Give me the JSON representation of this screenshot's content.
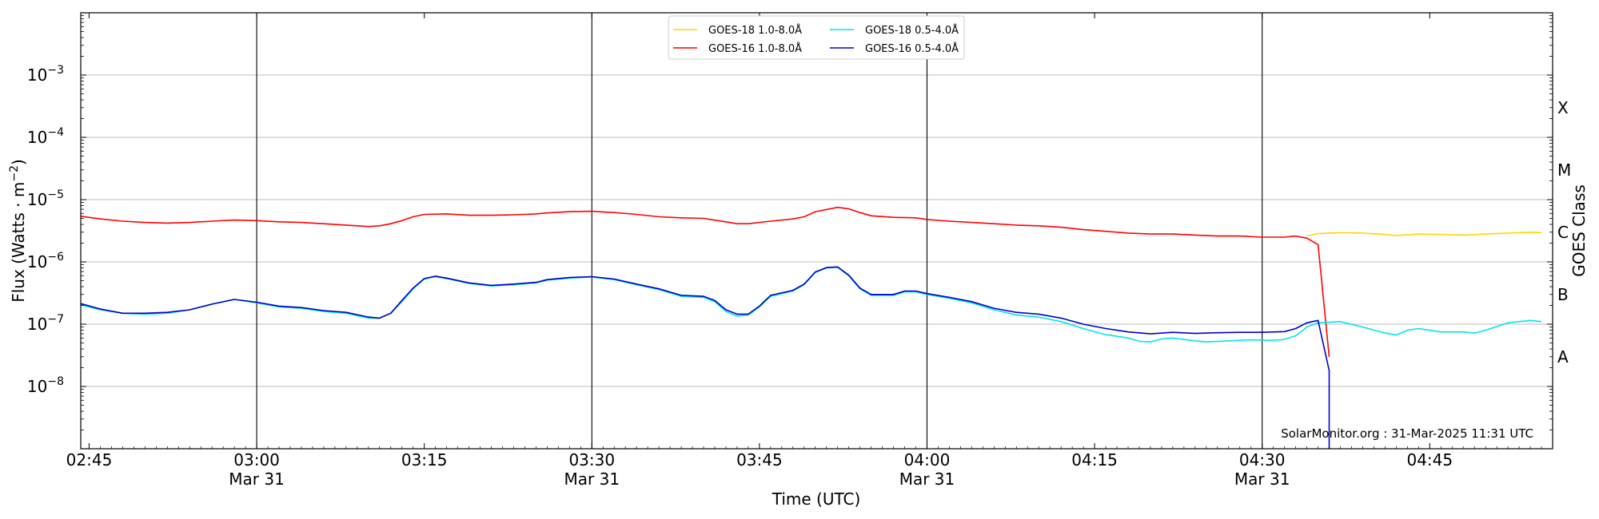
{
  "chart_data": {
    "type": "line",
    "xlabel": "Time (UTC)",
    "ylabel": "Flux (Watts · m",
    "ylabel_superscript": "−2",
    "ylabel_close": ")",
    "right_axis_label": "GOES Class",
    "yscale": "log",
    "ylim": [
      1e-09,
      0.01
    ],
    "xlim": [
      "02:44:15",
      "04:56:00"
    ],
    "grid": "horizontal at decades; vertical lines at half hours",
    "legend_position": "top-center",
    "watermark": "SolarMonitor.org : 31-Mar-2025 11:31 UTC",
    "x_ticks": [
      {
        "t": "02:45",
        "label": "02:45",
        "sub": ""
      },
      {
        "t": "03:00",
        "label": "03:00",
        "sub": "Mar 31"
      },
      {
        "t": "03:15",
        "label": "03:15",
        "sub": ""
      },
      {
        "t": "03:30",
        "label": "03:30",
        "sub": "Mar 31"
      },
      {
        "t": "03:45",
        "label": "03:45",
        "sub": ""
      },
      {
        "t": "04:00",
        "label": "04:00",
        "sub": "Mar 31"
      },
      {
        "t": "04:15",
        "label": "04:15",
        "sub": ""
      },
      {
        "t": "04:30",
        "label": "04:30",
        "sub": "Mar 31"
      },
      {
        "t": "04:45",
        "label": "04:45",
        "sub": ""
      }
    ],
    "vertical_lines": [
      "03:00",
      "03:30",
      "04:00",
      "04:30"
    ],
    "y_ticks": [
      {
        "v": 1e-08,
        "base": "10",
        "exp": "−8"
      },
      {
        "v": 1e-07,
        "base": "10",
        "exp": "−7"
      },
      {
        "v": 1e-06,
        "base": "10",
        "exp": "−6"
      },
      {
        "v": 1e-05,
        "base": "10",
        "exp": "−5"
      },
      {
        "v": 0.0001,
        "base": "10",
        "exp": "−4"
      },
      {
        "v": 0.001,
        "base": "10",
        "exp": "−3"
      }
    ],
    "goes_classes": [
      {
        "label": "A",
        "v": 3e-08
      },
      {
        "label": "B",
        "v": 3e-07
      },
      {
        "label": "C",
        "v": 3e-06
      },
      {
        "label": "M",
        "v": 3e-05
      },
      {
        "label": "X",
        "v": 0.0003
      }
    ],
    "series": [
      {
        "name": "GOES-18 1.0-8.0Å",
        "color": "#ffd700",
        "points": [
          [
            "04:34",
            2.6e-06
          ],
          [
            "04:35",
            2.85e-06
          ],
          [
            "04:37",
            2.95e-06
          ],
          [
            "04:39",
            2.9e-06
          ],
          [
            "04:41",
            2.75e-06
          ],
          [
            "04:42",
            2.65e-06
          ],
          [
            "04:44",
            2.8e-06
          ],
          [
            "04:46",
            2.75e-06
          ],
          [
            "04:48",
            2.7e-06
          ],
          [
            "04:50",
            2.8e-06
          ],
          [
            "04:52",
            2.9e-06
          ],
          [
            "04:54",
            3e-06
          ],
          [
            "04:55",
            2.95e-06
          ]
        ]
      },
      {
        "name": "GOES-16 1.0-8.0Å",
        "color": "#ff0000",
        "points": [
          [
            "02:44",
            5.5e-06
          ],
          [
            "02:46",
            4.9e-06
          ],
          [
            "02:48",
            4.5e-06
          ],
          [
            "02:50",
            4.3e-06
          ],
          [
            "02:52",
            4.2e-06
          ],
          [
            "02:54",
            4.3e-06
          ],
          [
            "02:56",
            4.5e-06
          ],
          [
            "02:58",
            4.7e-06
          ],
          [
            "03:00",
            4.6e-06
          ],
          [
            "03:02",
            4.4e-06
          ],
          [
            "03:04",
            4.3e-06
          ],
          [
            "03:06",
            4.1e-06
          ],
          [
            "03:08",
            3.9e-06
          ],
          [
            "03:10",
            3.7e-06
          ],
          [
            "03:11",
            3.8e-06
          ],
          [
            "03:12",
            4.1e-06
          ],
          [
            "03:13",
            4.6e-06
          ],
          [
            "03:14",
            5.3e-06
          ],
          [
            "03:15",
            5.8e-06
          ],
          [
            "03:17",
            5.9e-06
          ],
          [
            "03:19",
            5.6e-06
          ],
          [
            "03:21",
            5.6e-06
          ],
          [
            "03:23",
            5.7e-06
          ],
          [
            "03:25",
            5.9e-06
          ],
          [
            "03:26",
            6.1e-06
          ],
          [
            "03:28",
            6.4e-06
          ],
          [
            "03:30",
            6.5e-06
          ],
          [
            "03:32",
            6.2e-06
          ],
          [
            "03:34",
            5.8e-06
          ],
          [
            "03:36",
            5.3e-06
          ],
          [
            "03:38",
            5.1e-06
          ],
          [
            "03:40",
            5e-06
          ],
          [
            "03:42",
            4.4e-06
          ],
          [
            "03:43",
            4.1e-06
          ],
          [
            "03:44",
            4.1e-06
          ],
          [
            "03:46",
            4.5e-06
          ],
          [
            "03:48",
            4.9e-06
          ],
          [
            "03:49",
            5.3e-06
          ],
          [
            "03:50",
            6.4e-06
          ],
          [
            "03:52",
            7.5e-06
          ],
          [
            "03:53",
            7.1e-06
          ],
          [
            "03:54",
            6.2e-06
          ],
          [
            "03:55",
            5.5e-06
          ],
          [
            "03:57",
            5.2e-06
          ],
          [
            "03:59",
            5.1e-06
          ],
          [
            "04:00",
            4.8e-06
          ],
          [
            "04:02",
            4.5e-06
          ],
          [
            "04:04",
            4.3e-06
          ],
          [
            "04:06",
            4.1e-06
          ],
          [
            "04:08",
            3.9e-06
          ],
          [
            "04:10",
            3.8e-06
          ],
          [
            "04:12",
            3.6e-06
          ],
          [
            "04:14",
            3.3e-06
          ],
          [
            "04:16",
            3.1e-06
          ],
          [
            "04:18",
            2.9e-06
          ],
          [
            "04:20",
            2.8e-06
          ],
          [
            "04:22",
            2.8e-06
          ],
          [
            "04:24",
            2.7e-06
          ],
          [
            "04:26",
            2.6e-06
          ],
          [
            "04:28",
            2.6e-06
          ],
          [
            "04:30",
            2.5e-06
          ],
          [
            "04:32",
            2.5e-06
          ],
          [
            "04:33",
            2.6e-06
          ],
          [
            "04:34",
            2.4e-06
          ],
          [
            "04:35",
            1.9e-06
          ],
          [
            "04:36",
            3e-08
          ]
        ]
      },
      {
        "name": "GOES-18 0.5-4.0Å",
        "color": "#00e5ee",
        "points": [
          [
            "02:44",
            2.1e-07
          ],
          [
            "02:46",
            1.7e-07
          ],
          [
            "02:48",
            1.5e-07
          ],
          [
            "02:50",
            1.45e-07
          ],
          [
            "02:52",
            1.5e-07
          ],
          [
            "02:54",
            1.7e-07
          ],
          [
            "02:56",
            2.1e-07
          ],
          [
            "02:58",
            2.5e-07
          ],
          [
            "03:00",
            2.2e-07
          ],
          [
            "03:02",
            1.9e-07
          ],
          [
            "03:04",
            1.8e-07
          ],
          [
            "03:06",
            1.6e-07
          ],
          [
            "03:08",
            1.5e-07
          ],
          [
            "03:10",
            1.25e-07
          ],
          [
            "03:11",
            1.25e-07
          ],
          [
            "03:12",
            1.5e-07
          ],
          [
            "03:13",
            2.3e-07
          ],
          [
            "03:14",
            3.7e-07
          ],
          [
            "03:15",
            5.3e-07
          ],
          [
            "03:16",
            5.8e-07
          ],
          [
            "03:17",
            5.4e-07
          ],
          [
            "03:19",
            4.5e-07
          ],
          [
            "03:21",
            4.1e-07
          ],
          [
            "03:23",
            4.3e-07
          ],
          [
            "03:25",
            4.6e-07
          ],
          [
            "03:26",
            5.1e-07
          ],
          [
            "03:28",
            5.5e-07
          ],
          [
            "03:30",
            5.7e-07
          ],
          [
            "03:32",
            5.2e-07
          ],
          [
            "03:34",
            4.3e-07
          ],
          [
            "03:36",
            3.6e-07
          ],
          [
            "03:38",
            2.8e-07
          ],
          [
            "03:40",
            2.7e-07
          ],
          [
            "03:41",
            2.3e-07
          ],
          [
            "03:42",
            1.6e-07
          ],
          [
            "03:43",
            1.35e-07
          ],
          [
            "03:44",
            1.4e-07
          ],
          [
            "03:45",
            1.9e-07
          ],
          [
            "03:46",
            2.8e-07
          ],
          [
            "03:48",
            3.4e-07
          ],
          [
            "03:49",
            4.3e-07
          ],
          [
            "03:50",
            6.8e-07
          ],
          [
            "03:51",
            8e-07
          ],
          [
            "03:52",
            8.2e-07
          ],
          [
            "03:53",
            6e-07
          ],
          [
            "03:54",
            3.7e-07
          ],
          [
            "03:55",
            2.9e-07
          ],
          [
            "03:57",
            2.9e-07
          ],
          [
            "03:58",
            3.3e-07
          ],
          [
            "03:59",
            3.3e-07
          ],
          [
            "04:00",
            3e-07
          ],
          [
            "04:02",
            2.6e-07
          ],
          [
            "04:04",
            2.2e-07
          ],
          [
            "04:06",
            1.7e-07
          ],
          [
            "04:08",
            1.4e-07
          ],
          [
            "04:10",
            1.3e-07
          ],
          [
            "04:12",
            1.1e-07
          ],
          [
            "04:14",
            8.5e-08
          ],
          [
            "04:16",
            6.8e-08
          ],
          [
            "04:18",
            6e-08
          ],
          [
            "04:19",
            5.3e-08
          ],
          [
            "04:20",
            5.2e-08
          ],
          [
            "04:21",
            5.8e-08
          ],
          [
            "04:22",
            6e-08
          ],
          [
            "04:24",
            5.4e-08
          ],
          [
            "04:25",
            5.2e-08
          ],
          [
            "04:27",
            5.4e-08
          ],
          [
            "04:29",
            5.6e-08
          ],
          [
            "04:31",
            5.5e-08
          ],
          [
            "04:32",
            5.7e-08
          ],
          [
            "04:33",
            6.5e-08
          ],
          [
            "04:34",
            9e-08
          ],
          [
            "04:35",
            1.05e-07
          ],
          [
            "04:37",
            1.1e-07
          ],
          [
            "04:39",
            9e-08
          ],
          [
            "04:41",
            7.2e-08
          ],
          [
            "04:42",
            6.7e-08
          ],
          [
            "04:43",
            8e-08
          ],
          [
            "04:44",
            8.5e-08
          ],
          [
            "04:46",
            7.5e-08
          ],
          [
            "04:48",
            7.5e-08
          ],
          [
            "04:49",
            7.2e-08
          ],
          [
            "04:50",
            8e-08
          ],
          [
            "04:52",
            1.05e-07
          ],
          [
            "04:54",
            1.15e-07
          ],
          [
            "04:55",
            1.1e-07
          ]
        ]
      },
      {
        "name": "GOES-16 0.5-4.0Å",
        "color": "#0000cd",
        "points": [
          [
            "02:44",
            2.2e-07
          ],
          [
            "02:46",
            1.75e-07
          ],
          [
            "02:48",
            1.5e-07
          ],
          [
            "02:50",
            1.5e-07
          ],
          [
            "02:52",
            1.55e-07
          ],
          [
            "02:54",
            1.7e-07
          ],
          [
            "02:56",
            2.1e-07
          ],
          [
            "02:58",
            2.5e-07
          ],
          [
            "03:00",
            2.25e-07
          ],
          [
            "03:02",
            1.95e-07
          ],
          [
            "03:04",
            1.85e-07
          ],
          [
            "03:06",
            1.65e-07
          ],
          [
            "03:08",
            1.55e-07
          ],
          [
            "03:10",
            1.3e-07
          ],
          [
            "03:11",
            1.25e-07
          ],
          [
            "03:12",
            1.5e-07
          ],
          [
            "03:13",
            2.4e-07
          ],
          [
            "03:14",
            3.8e-07
          ],
          [
            "03:15",
            5.4e-07
          ],
          [
            "03:16",
            5.9e-07
          ],
          [
            "03:17",
            5.5e-07
          ],
          [
            "03:19",
            4.6e-07
          ],
          [
            "03:21",
            4.2e-07
          ],
          [
            "03:23",
            4.4e-07
          ],
          [
            "03:25",
            4.7e-07
          ],
          [
            "03:26",
            5.2e-07
          ],
          [
            "03:28",
            5.6e-07
          ],
          [
            "03:30",
            5.8e-07
          ],
          [
            "03:32",
            5.3e-07
          ],
          [
            "03:34",
            4.4e-07
          ],
          [
            "03:36",
            3.7e-07
          ],
          [
            "03:38",
            2.9e-07
          ],
          [
            "03:40",
            2.8e-07
          ],
          [
            "03:41",
            2.4e-07
          ],
          [
            "03:42",
            1.7e-07
          ],
          [
            "03:43",
            1.45e-07
          ],
          [
            "03:44",
            1.45e-07
          ],
          [
            "03:45",
            1.95e-07
          ],
          [
            "03:46",
            2.9e-07
          ],
          [
            "03:48",
            3.5e-07
          ],
          [
            "03:49",
            4.4e-07
          ],
          [
            "03:50",
            6.9e-07
          ],
          [
            "03:51",
            8.1e-07
          ],
          [
            "03:52",
            8.3e-07
          ],
          [
            "03:53",
            6.1e-07
          ],
          [
            "03:54",
            3.8e-07
          ],
          [
            "03:55",
            3e-07
          ],
          [
            "03:57",
            3e-07
          ],
          [
            "03:58",
            3.4e-07
          ],
          [
            "03:59",
            3.4e-07
          ],
          [
            "04:00",
            3.1e-07
          ],
          [
            "04:02",
            2.7e-07
          ],
          [
            "04:04",
            2.3e-07
          ],
          [
            "04:06",
            1.8e-07
          ],
          [
            "04:08",
            1.55e-07
          ],
          [
            "04:10",
            1.45e-07
          ],
          [
            "04:12",
            1.25e-07
          ],
          [
            "04:14",
            1e-07
          ],
          [
            "04:16",
            8.5e-08
          ],
          [
            "04:18",
            7.5e-08
          ],
          [
            "04:20",
            7e-08
          ],
          [
            "04:22",
            7.4e-08
          ],
          [
            "04:24",
            7.1e-08
          ],
          [
            "04:26",
            7.3e-08
          ],
          [
            "04:28",
            7.4e-08
          ],
          [
            "04:30",
            7.4e-08
          ],
          [
            "04:32",
            7.6e-08
          ],
          [
            "04:33",
            8.5e-08
          ],
          [
            "04:34",
            1.05e-07
          ],
          [
            "04:35",
            1.15e-07
          ],
          [
            "04:36",
            1.8e-08
          ],
          [
            "04:36",
            1e-09
          ]
        ]
      }
    ]
  }
}
